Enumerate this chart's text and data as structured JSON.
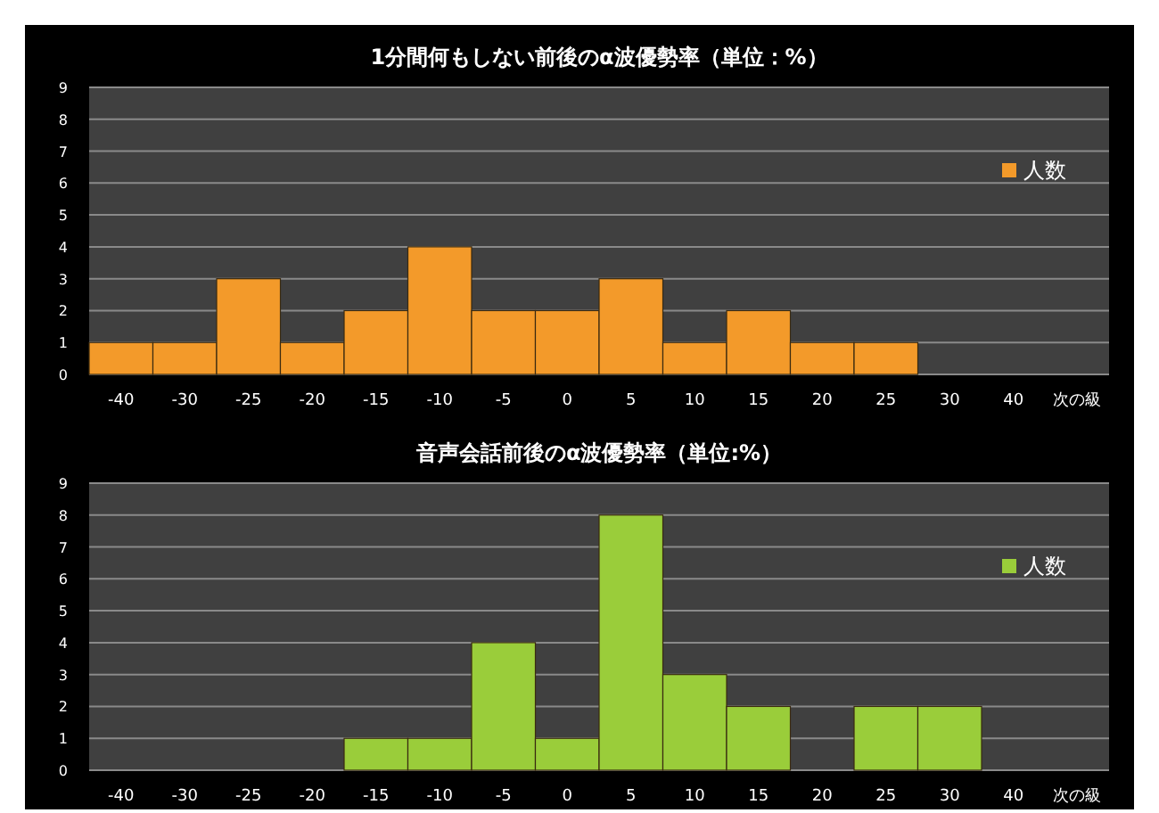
{
  "chart_data": [
    {
      "type": "bar",
      "title": "1分間何もしない前後のα波優勢率（単位：%）",
      "categories": [
        "-40",
        "-30",
        "-25",
        "-20",
        "-15",
        "-10",
        "-5",
        "0",
        "5",
        "10",
        "15",
        "20",
        "25",
        "30",
        "40",
        "次の級"
      ],
      "series": [
        {
          "name": "人数",
          "color": "#f39a2a",
          "values": [
            1,
            1,
            3,
            1,
            2,
            4,
            2,
            2,
            3,
            1,
            2,
            1,
            1,
            0,
            0,
            0
          ]
        }
      ],
      "ylim": [
        0,
        9
      ],
      "yticks": [
        0,
        1,
        2,
        3,
        4,
        5,
        6,
        7,
        8,
        9
      ],
      "grid": "y",
      "legend": "right"
    },
    {
      "type": "bar",
      "title": "音声会話前後のα波優勢率（単位:%）",
      "categories": [
        "-40",
        "-30",
        "-25",
        "-20",
        "-15",
        "-10",
        "-5",
        "0",
        "5",
        "10",
        "15",
        "20",
        "25",
        "30",
        "40",
        "次の級"
      ],
      "series": [
        {
          "name": "人数",
          "color": "#9acd3a",
          "values": [
            0,
            0,
            0,
            0,
            1,
            1,
            4,
            1,
            8,
            3,
            2,
            0,
            2,
            2,
            0,
            0
          ]
        }
      ],
      "ylim": [
        0,
        9
      ],
      "yticks": [
        0,
        1,
        2,
        3,
        4,
        5,
        6,
        7,
        8,
        9
      ],
      "grid": "y",
      "legend": "right"
    }
  ]
}
